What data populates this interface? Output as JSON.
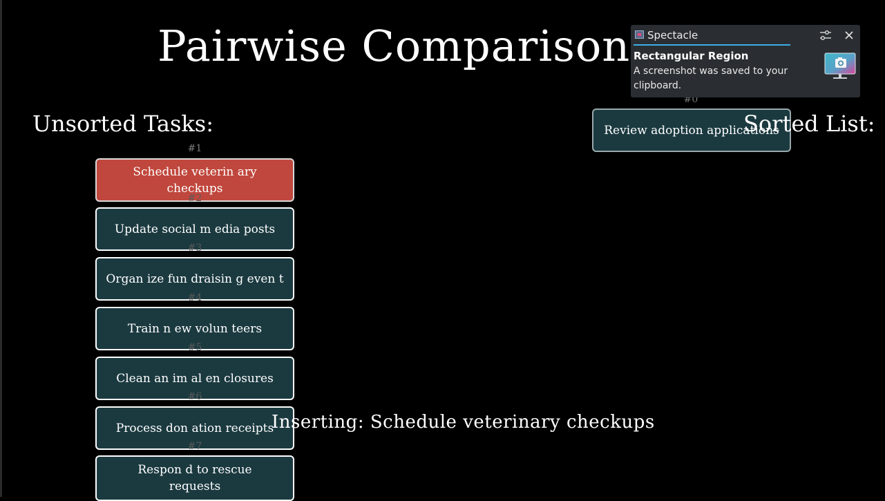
{
  "title": "Pairwise Comparison So",
  "unsorted_heading": "Unsorted Tasks:",
  "sorted_heading": "Sorted List:",
  "status": "Inserting: Schedule veterinary checkups",
  "unsorted_tasks": [
    {
      "num": "#1",
      "label": "Schedule veterin ary checkups",
      "active": true
    },
    {
      "num": "#2",
      "label": "Update social m edia posts",
      "active": false
    },
    {
      "num": "#3",
      "label": "Organ ize fun draisin g even t",
      "active": false
    },
    {
      "num": "#4",
      "label": "Train n ew volun teers",
      "active": false
    },
    {
      "num": "#5",
      "label": "Clean an im al en closures",
      "active": false
    },
    {
      "num": "#6",
      "label": "Process don ation receipts",
      "active": false
    },
    {
      "num": "#7",
      "label": "Respon d to rescue requests",
      "active": false
    }
  ],
  "sorted_tasks": [
    {
      "num": "#0",
      "label": "Review adoption applications"
    }
  ],
  "notification": {
    "app_name": "Spectacle",
    "summary": "Rectangular Region",
    "body": "A screenshot was saved to your clipboard.",
    "settings_icon": "sliders-icon",
    "close_icon": "close-icon",
    "thumbnail_icon": "screenshot-camera-icon"
  },
  "colors": {
    "background": "#000000",
    "card": "#1b3a40",
    "active_card": "#c0473d",
    "notification_bg": "#2a2e32",
    "accent": "#3daee9"
  }
}
